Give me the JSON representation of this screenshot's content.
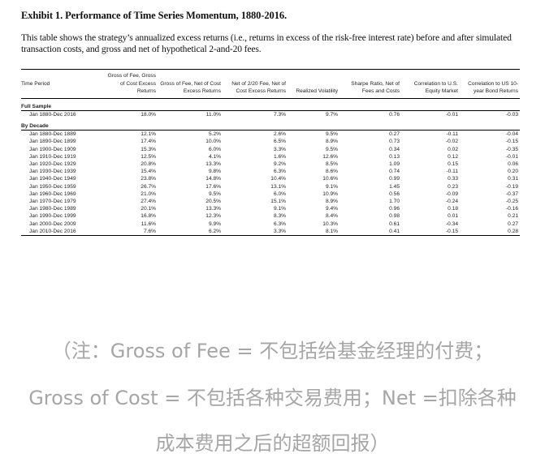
{
  "title": "Exhibit 1. Performance of Time Series Momentum, 1880-2016.",
  "description": "This table shows the strategy’s annualized excess returns (i.e., returns in excess of the risk-free interest rate) before and after simulated transaction costs, and gross and net of hypothetical 2-and-20 fees.",
  "table": {
    "headers": [
      "Time Period",
      "Gross of Fee, Gross of Cost Excess Returns",
      "Gross of Fee, Net of Cost Excess Returns",
      "Net of 2/20 Fee, Net of Cost Excess Returns",
      "Realized Volatility",
      "Sharpe Ratio, Net of Fees and Costs",
      "Correlation to U.S. Equity Market",
      "Correlation to US 10-year Bond Returns"
    ],
    "sections": [
      {
        "label": "Full Sample",
        "rows": [
          [
            "Jan 1880-Dec 2016",
            "18.0%",
            "11.0%",
            "7.3%",
            "9.7%",
            "0.76",
            "-0.01",
            "-0.03"
          ]
        ]
      },
      {
        "label": "By Decade",
        "rows": [
          [
            "Jan 1880-Dec 1889",
            "12.1%",
            "5.2%",
            "2.6%",
            "9.5%",
            "0.27",
            "-0.11",
            "-0.04"
          ],
          [
            "Jan 1890-Dec 1899",
            "17.4%",
            "10.0%",
            "6.5%",
            "8.9%",
            "0.73",
            "-0.02",
            "-0.15"
          ],
          [
            "Jan 1900-Dec 1909",
            "15.3%",
            "6.0%",
            "3.3%",
            "9.5%",
            "0.34",
            "0.02",
            "-0.35"
          ],
          [
            "Jan 1910-Dec 1919",
            "12.5%",
            "4.1%",
            "1.6%",
            "12.6%",
            "0.13",
            "0.12",
            "-0.01"
          ],
          [
            "Jan 1920-Dec 1929",
            "20.8%",
            "13.3%",
            "9.2%",
            "8.5%",
            "1.09",
            "0.15",
            "0.06"
          ],
          [
            "Jan 1930-Dec 1939",
            "15.4%",
            "9.8%",
            "6.3%",
            "8.6%",
            "0.74",
            "-0.11",
            "0.20"
          ],
          [
            "Jan 1940-Dec 1949",
            "23.8%",
            "14.8%",
            "10.4%",
            "10.6%",
            "0.99",
            "0.33",
            "0.31"
          ],
          [
            "Jan 1950-Dec 1959",
            "26.7%",
            "17.6%",
            "13.1%",
            "9.1%",
            "1.45",
            "0.23",
            "-0.19"
          ],
          [
            "Jan 1960-Dec 1969",
            "21.0%",
            "9.5%",
            "6.0%",
            "10.9%",
            "0.56",
            "-0.09",
            "-0.37"
          ],
          [
            "Jan 1970-Dec 1979",
            "27.4%",
            "20.5%",
            "15.1%",
            "8.9%",
            "1.70",
            "-0.24",
            "-0.25"
          ],
          [
            "Jan 1980-Dec 1989",
            "20.1%",
            "13.3%",
            "9.1%",
            "9.4%",
            "0.96",
            "0.18",
            "-0.16"
          ],
          [
            "Jan 1990-Dec 1999",
            "16.8%",
            "12.3%",
            "8.3%",
            "8.4%",
            "0.98",
            "0.01",
            "0.21"
          ],
          [
            "Jan 2000-Dec 2009",
            "11.6%",
            "9.9%",
            "6.3%",
            "10.3%",
            "0.61",
            "-0.34",
            "0.27"
          ],
          [
            "Jan 2010-Dec 2016",
            "7.6%",
            "6.2%",
            "3.3%",
            "8.1%",
            "0.41",
            "-0.15",
            "0.28"
          ]
        ]
      }
    ]
  },
  "notes": [
    "（注：Gross of Fee = 不包括给基金经理的付费；",
    "Gross of Cost = 不包括各种交易费用；Net =扣除各种",
    "成本费用之后的超额回报）"
  ]
}
